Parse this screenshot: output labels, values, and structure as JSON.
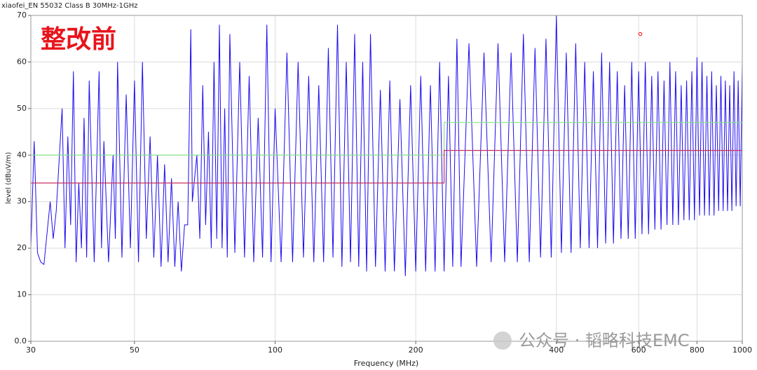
{
  "chart_data": {
    "type": "line",
    "title": "xiaofei_EN 55032 Class B 30MHz-1GHz",
    "annotation": "整改前",
    "watermark": "公众号 · 韬略科技EMC",
    "x_label": "Frequency (MHz)",
    "y_label": "level (dBuV/m)",
    "log_x": true,
    "grid": true,
    "xlim": [
      30,
      1000
    ],
    "ylim": [
      0,
      70
    ],
    "xticks": [
      30,
      50,
      100,
      200,
      400,
      600,
      800,
      1000
    ],
    "yticks": [
      {
        "value": 0,
        "label": "0.0"
      },
      10,
      20,
      30,
      40,
      50,
      60,
      70
    ],
    "series": [
      {
        "color": "#1e0cf0",
        "x": [
          30,
          30.5,
          31,
          31.5,
          32,
          33,
          33.5,
          34,
          35,
          35.5,
          36,
          36.5,
          37,
          37.5,
          38,
          38.5,
          39,
          39.5,
          40,
          41,
          42,
          42.5,
          43,
          44,
          45,
          45.5,
          46,
          47,
          48,
          49,
          50,
          51,
          52,
          53,
          54,
          55,
          56,
          57,
          58,
          59,
          60,
          61,
          62,
          63,
          64,
          65,
          66,
          66.5,
          68,
          69,
          70,
          71,
          72,
          73,
          74,
          75,
          76,
          77,
          78,
          79,
          80,
          82,
          84,
          86,
          88,
          90,
          92,
          94,
          96,
          98,
          100,
          103,
          106,
          109,
          112,
          115,
          118,
          121,
          124,
          127,
          130,
          133,
          136,
          139,
          142,
          145,
          148,
          151,
          154,
          157,
          160,
          164,
          168,
          172,
          176,
          180,
          185,
          190,
          195,
          200,
          205,
          210,
          215,
          220,
          225,
          230,
          235,
          240,
          245,
          250,
          260,
          270,
          280,
          290,
          300,
          310,
          320,
          330,
          340,
          350,
          360,
          370,
          380,
          390,
          400,
          410,
          420,
          430,
          440,
          450,
          460,
          470,
          480,
          490,
          500,
          510,
          520,
          530,
          540,
          550,
          560,
          570,
          580,
          590,
          600,
          610,
          620,
          630,
          640,
          650,
          660,
          670,
          680,
          690,
          700,
          710,
          720,
          730,
          740,
          750,
          760,
          770,
          780,
          790,
          800,
          810,
          820,
          830,
          840,
          850,
          860,
          870,
          880,
          890,
          900,
          910,
          920,
          930,
          940,
          950,
          960,
          970,
          980,
          990,
          1000
        ],
        "values": [
          20,
          43,
          19,
          17,
          16.5,
          30,
          22,
          28,
          50,
          20,
          44,
          25,
          58,
          17,
          34,
          20,
          48,
          18,
          56,
          17,
          58,
          20,
          43,
          17,
          40,
          22,
          60,
          18,
          53,
          20,
          56,
          17,
          60,
          22,
          44,
          18,
          40,
          16,
          38,
          17,
          35,
          16,
          30,
          15,
          25,
          25,
          67,
          30,
          40,
          22,
          55,
          25,
          45,
          20,
          60,
          22,
          68,
          20,
          50,
          18,
          66,
          19,
          60,
          18,
          57,
          17,
          48,
          18,
          68,
          17,
          50,
          17,
          62,
          17,
          60,
          18,
          57,
          17,
          55,
          17,
          63,
          18,
          68,
          16,
          60,
          17,
          66,
          16,
          60,
          15,
          66,
          16,
          54,
          15,
          56,
          15,
          52,
          14,
          55,
          15,
          57,
          15,
          55,
          15,
          60,
          15,
          57,
          16,
          65,
          16,
          64,
          16,
          62,
          17,
          64,
          17,
          62,
          17,
          66,
          17,
          63,
          18,
          65,
          18,
          70,
          19,
          62,
          19,
          64,
          20,
          60,
          20,
          58,
          20,
          62,
          21,
          60,
          21,
          58,
          22,
          55,
          22,
          60,
          22,
          58,
          23,
          60,
          23,
          57,
          24,
          58,
          24,
          56,
          25,
          60,
          25,
          58,
          25,
          55,
          26,
          56,
          26,
          58,
          26,
          61,
          27,
          60,
          27,
          57,
          27,
          58,
          27,
          55,
          28,
          57,
          28,
          56,
          28,
          55,
          28,
          58,
          29,
          56,
          29,
          60
        ]
      },
      {
        "color": "#86e086",
        "x": [
          30,
          230,
          230,
          1000
        ],
        "values": [
          40,
          40,
          47,
          47
        ]
      },
      {
        "color": "#c8305a",
        "x": [
          30,
          230,
          230,
          1000
        ],
        "values": [
          34,
          34,
          41,
          41
        ]
      },
      {
        "color": "#ff2020",
        "x": [
          605
        ],
        "values": [
          66
        ],
        "marker": true
      }
    ]
  }
}
